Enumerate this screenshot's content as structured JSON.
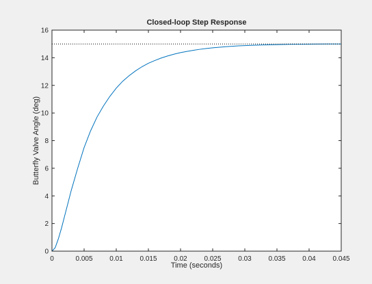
{
  "chart_data": {
    "type": "line",
    "title": "Closed-loop Step Response",
    "xlabel": "Time (seconds)",
    "ylabel": "Butterfly Valve Angle (deg)",
    "xlim": [
      0,
      0.045
    ],
    "ylim": [
      0,
      16
    ],
    "x_ticks": [
      0,
      0.005,
      0.01,
      0.015,
      0.02,
      0.025,
      0.03,
      0.035,
      0.04,
      0.045
    ],
    "x_tick_labels": [
      "0",
      "0.005",
      "0.01",
      "0.015",
      "0.02",
      "0.025",
      "0.03",
      "0.035",
      "0.04",
      "0.045"
    ],
    "y_ticks": [
      0,
      2,
      4,
      6,
      8,
      10,
      12,
      14,
      16
    ],
    "y_tick_labels": [
      "0",
      "2",
      "4",
      "6",
      "8",
      "10",
      "12",
      "14",
      "16"
    ],
    "grid": false,
    "series": [
      {
        "style": "solid",
        "color": "#0072bd",
        "x": [
          0,
          0.0005,
          0.001,
          0.0015,
          0.002,
          0.0025,
          0.003,
          0.004,
          0.005,
          0.006,
          0.007,
          0.008,
          0.009,
          0.01,
          0.011,
          0.012,
          0.013,
          0.014,
          0.015,
          0.016,
          0.017,
          0.018,
          0.019,
          0.02,
          0.021,
          0.022,
          0.023,
          0.024,
          0.025,
          0.027,
          0.029,
          0.031,
          0.033,
          0.035,
          0.037,
          0.039,
          0.041,
          0.043,
          0.045
        ],
        "y": [
          0,
          0.25,
          0.9,
          1.7,
          2.6,
          3.5,
          4.4,
          6.0,
          7.5,
          8.7,
          9.7,
          10.5,
          11.2,
          11.8,
          12.3,
          12.7,
          13.05,
          13.35,
          13.6,
          13.8,
          13.98,
          14.13,
          14.26,
          14.37,
          14.46,
          14.54,
          14.61,
          14.67,
          14.72,
          14.8,
          14.86,
          14.9,
          14.93,
          14.95,
          14.97,
          14.98,
          14.99,
          14.995,
          15.0
        ]
      },
      {
        "style": "dotted",
        "color": "#000000",
        "x": [
          0,
          0.045
        ],
        "y": [
          15,
          15
        ]
      }
    ]
  }
}
